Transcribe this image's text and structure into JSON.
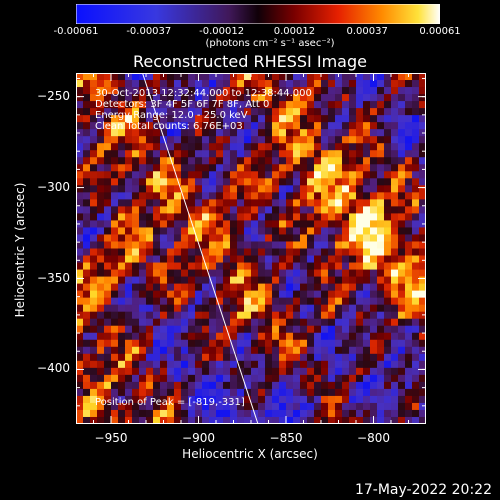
{
  "colorbar": {
    "ticks": [
      "-0.00061",
      "-0.00037",
      "-0.00012",
      "0.00012",
      "0.00037",
      "0.00061"
    ],
    "unit_label": "(photons cm⁻² s⁻¹ asec⁻²)"
  },
  "annotations": {
    "time_range": "30-Oct-2013 12:32:44.000 to 12:38:44.000",
    "detectors": "Detectors: 3F 4F 5F 6F 7F 8F, Att 0",
    "energy": "Energy Range: 12.0 - 25.0 keV",
    "clean": "Clean    Total counts: 6.76E+03",
    "peak": "Position of Peak = [-819,-331]"
  },
  "footer": {
    "date": "17-May-2022 20:22"
  },
  "chart_data": {
    "type": "heatmap",
    "title": "Reconstructed RHESSI Image",
    "xlabel": "Heliocentric X (arcsec)",
    "ylabel": "Heliocentric Y (arcsec)",
    "xlim": [
      -970,
      -770
    ],
    "ylim": [
      -430,
      -237
    ],
    "x_ticks": [
      "-950",
      "-900",
      "-850",
      "-800"
    ],
    "y_ticks": [
      "-250",
      "-300",
      "-350",
      "-400"
    ],
    "colorscale_range": [
      -0.00061,
      0.00061
    ],
    "colormap": "blue-purple-red-orange-yellow-white",
    "peak_position": [
      -819,
      -331
    ],
    "limb_line": [
      [
        -932,
        -237
      ],
      [
        -866,
        -430
      ]
    ],
    "grid": false,
    "colors": {
      "background": "#000000",
      "text": "#ffffff",
      "limb": "#ffffff"
    }
  }
}
